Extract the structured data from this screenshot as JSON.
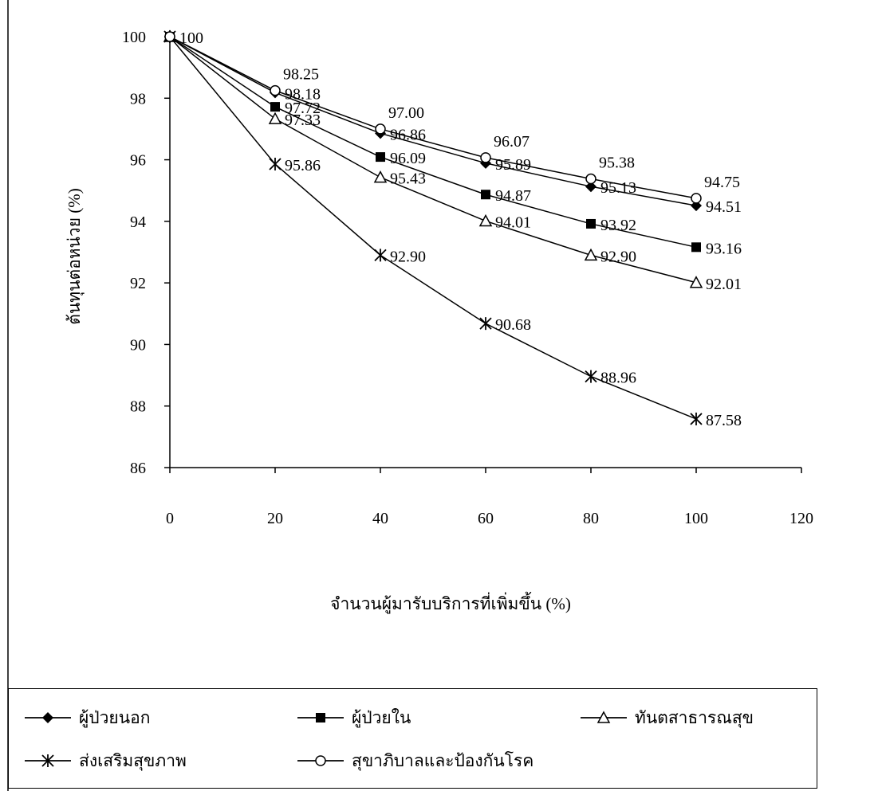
{
  "chart_data": {
    "type": "line",
    "title": "",
    "xlabel": "จำนวนผู้มารับบริการที่เพิ่มขึ้น (%)",
    "ylabel": "ต้นทุนต่อหน่วย (%)",
    "xlim": [
      0,
      120
    ],
    "ylim": [
      86,
      100
    ],
    "x_ticks": [
      "0",
      "20",
      "40",
      "60",
      "80",
      "100",
      "120"
    ],
    "y_ticks": [
      "86",
      "88",
      "90",
      "92",
      "94",
      "96",
      "98",
      "100"
    ],
    "grid": false,
    "legend_position": "bottom",
    "x": [
      0,
      20,
      40,
      60,
      80,
      100
    ],
    "series": [
      {
        "name": "ผู้ป่วยนอก",
        "marker": "diamond",
        "values": [
          100,
          98.18,
          96.86,
          95.89,
          95.13,
          94.51
        ],
        "labels": [
          "",
          "98.18",
          "96.86",
          "95.89",
          "95.13",
          "94.51"
        ]
      },
      {
        "name": "ผู้ป่วยใน",
        "marker": "square",
        "values": [
          100,
          97.72,
          96.09,
          94.87,
          93.92,
          93.16
        ],
        "labels": [
          "100",
          "97.72",
          "96.09",
          "94.87",
          "93.92",
          "93.16"
        ]
      },
      {
        "name": "ทันตสาธารณสุข",
        "marker": "triangle",
        "values": [
          100,
          97.33,
          95.43,
          94.01,
          92.9,
          92.01
        ],
        "labels": [
          "",
          "97.33",
          "95.43",
          "94.01",
          "92.90",
          "92.01"
        ]
      },
      {
        "name": "ส่งเสริมสุขภาพ",
        "marker": "asterisk",
        "values": [
          100,
          95.86,
          92.9,
          90.68,
          88.96,
          87.58
        ],
        "labels": [
          "",
          "95.86",
          "92.90",
          "90.68",
          "88.96",
          "87.58"
        ]
      },
      {
        "name": "สุขาภิบาลและป้องกันโรค",
        "marker": "circle",
        "values": [
          100,
          98.25,
          97.0,
          96.07,
          95.38,
          94.75
        ],
        "labels": [
          "",
          "98.25",
          "97.00",
          "96.07",
          "95.38",
          "94.75"
        ]
      }
    ],
    "colors": {
      "line": "#000000",
      "background": "#ffffff"
    }
  }
}
